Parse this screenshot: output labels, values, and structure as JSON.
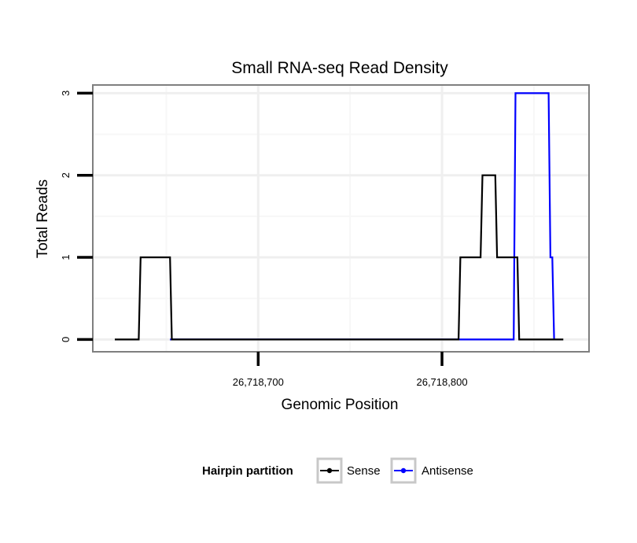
{
  "chart_data": {
    "type": "line",
    "title": "Small RNA-seq Read Density",
    "xlabel": "Genomic Position",
    "ylabel": "Total Reads",
    "xlim": [
      26718610,
      26718880
    ],
    "ylim": [
      -0.15,
      3.1
    ],
    "x_ticks": [
      {
        "value": 26718700,
        "label": "26,718,700"
      },
      {
        "value": 26718800,
        "label": "26,718,800"
      }
    ],
    "y_ticks": [
      {
        "value": 0,
        "label": "0"
      },
      {
        "value": 1,
        "label": "1"
      },
      {
        "value": 2,
        "label": "2"
      },
      {
        "value": 3,
        "label": "3"
      }
    ],
    "grid": true,
    "legend": {
      "title": "Hairpin partition",
      "position": "bottom",
      "entries": [
        {
          "name": "Sense",
          "color": "#000000"
        },
        {
          "name": "Antisense",
          "color": "#0000ff"
        }
      ]
    },
    "series": [
      {
        "name": "Sense",
        "color": "#000000",
        "x": [
          26718622,
          26718635,
          26718636,
          26718652,
          26718653,
          26718809,
          26718810,
          26718821,
          26718822,
          26718829,
          26718830,
          26718841,
          26718842,
          26718866
        ],
        "y": [
          0,
          0,
          1,
          1,
          0,
          0,
          1,
          1,
          2,
          2,
          1,
          1,
          0,
          0
        ]
      },
      {
        "name": "Antisense",
        "color": "#0000ff",
        "x": [
          26718652,
          26718839,
          26718840,
          26718858,
          26718859,
          26718860,
          26718861
        ],
        "y": [
          0,
          0,
          3,
          3,
          1,
          1,
          0
        ]
      }
    ]
  }
}
